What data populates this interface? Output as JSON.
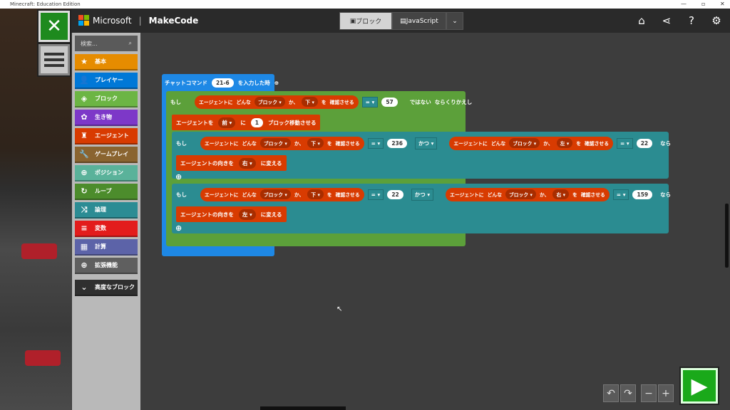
{
  "window": {
    "title": "Minecraft: Education Edition"
  },
  "header": {
    "brand": "Microsoft",
    "product": "MakeCode",
    "tabs": [
      {
        "label": "ブロック",
        "active": true
      },
      {
        "label": "JavaScript",
        "active": false
      }
    ],
    "icons": [
      "home-icon",
      "share-icon",
      "help-icon",
      "gear-icon"
    ]
  },
  "toolbox": {
    "search_placeholder": "検索...",
    "items": [
      {
        "label": "基本",
        "color": "#e68c00",
        "icon": "★"
      },
      {
        "label": "プレイヤー",
        "color": "#0078d7",
        "icon": "👤"
      },
      {
        "label": "ブロック",
        "color": "#6cb544",
        "icon": "◈"
      },
      {
        "label": "生き物",
        "color": "#7d38c8",
        "icon": "✿"
      },
      {
        "label": "エージェント",
        "color": "#d83b01",
        "icon": "♜"
      },
      {
        "label": "ゲームプレイ",
        "color": "#8a6430",
        "icon": "🔧"
      },
      {
        "label": "ポジション",
        "color": "#5ab29a",
        "icon": "⊕"
      },
      {
        "label": "ループ",
        "color": "#4c8c2c",
        "icon": "↻"
      },
      {
        "label": "論理",
        "color": "#2c8c94",
        "icon": "⤨"
      },
      {
        "label": "変数",
        "color": "#e31c1c",
        "icon": "≡"
      },
      {
        "label": "計算",
        "color": "#5c63a8",
        "icon": "▦"
      },
      {
        "label": "拡張機能",
        "color": "#5f5f5f",
        "icon": "⊕"
      }
    ],
    "advanced": "高度なブロック"
  },
  "blocks": {
    "event": {
      "label": "チャットコマンド",
      "command": "21-6",
      "suffix": "を入力した時"
    },
    "while": {
      "if": "もし",
      "agent": "エージェントに",
      "what": "どんな",
      "kind": "ブロック",
      "ka": "か、",
      "dir": "下",
      "check": "を",
      "confirm": "確認させる",
      "op": "=",
      "value": "57",
      "not": "ではない",
      "repeat": "ならくりかえし"
    },
    "move": {
      "label": "エージェントを",
      "dir": "前",
      "ni": "に",
      "count": "1",
      "suffix": "ブロック移動させる"
    },
    "if1": {
      "if": "もし",
      "dir1": "下",
      "op1": "=",
      "value1": "236",
      "and": "かつ",
      "dir2": "左",
      "op2": "=",
      "value2": "22",
      "then": "なら"
    },
    "turn1": {
      "label": "エージェントの向きを",
      "dir": "右",
      "suffix": "に変える"
    },
    "if2": {
      "if": "もし",
      "dir1": "下",
      "op1": "=",
      "value1": "22",
      "and": "かつ",
      "dir2": "右",
      "op2": "=",
      "value2": "159",
      "then": "なら"
    },
    "turn2": {
      "label": "エージェントの向きを",
      "dir": "左",
      "suffix": "に変える"
    }
  },
  "controls": {
    "undo": "↶",
    "redo": "↷",
    "zoom_out": "−",
    "zoom_in": "+",
    "run": "▶"
  }
}
